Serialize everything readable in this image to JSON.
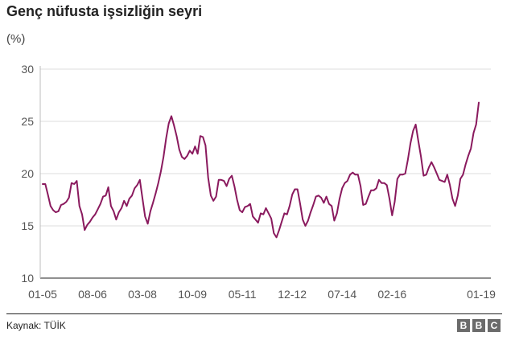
{
  "header": {
    "title": "Genç nüfusta işsizliğin seyri",
    "unit": "(%)"
  },
  "footer": {
    "source": "Kaynak: TÜİK",
    "logo_letters": [
      "B",
      "B",
      "C"
    ]
  },
  "colors": {
    "line": "#8a1a5e",
    "grid": "#dcdcdc",
    "axis": "#222222",
    "logo": "#6b6b6b"
  },
  "chart_data": {
    "type": "line",
    "title": "Genç nüfusta işsizliğin seyri",
    "ylabel": "(%)",
    "xlabel": "",
    "ylim": [
      10,
      30
    ],
    "yticks": [
      10,
      15,
      20,
      25,
      30
    ],
    "grid": true,
    "xtick_labels": [
      {
        "label": "01-05",
        "index": 0
      },
      {
        "label": "08-06",
        "index": 19
      },
      {
        "label": "03-08",
        "index": 38
      },
      {
        "label": "10-09",
        "index": 57
      },
      {
        "label": "05-11",
        "index": 76
      },
      {
        "label": "12-12",
        "index": 95
      },
      {
        "label": "07-14",
        "index": 114
      },
      {
        "label": "02-16",
        "index": 133
      },
      {
        "label": "01-19",
        "index": 168
      }
    ],
    "series": [
      {
        "color": "#8a1a5e",
        "values": [
          19,
          19,
          18,
          16.9,
          16.5,
          16.3,
          16.4,
          17,
          17.1,
          17.3,
          17.7,
          19.1,
          19,
          19.3,
          16.9,
          16.1,
          14.6,
          15.1,
          15.4,
          15.8,
          16.1,
          16.6,
          17.1,
          17.8,
          17.9,
          18.7,
          16.9,
          16.4,
          15.6,
          16.3,
          16.7,
          17.4,
          16.9,
          17.6,
          17.9,
          18.6,
          18.9,
          19.4,
          17.6,
          15.9,
          15.2,
          16.4,
          17.2,
          18.1,
          19.1,
          20.2,
          21.6,
          23.4,
          24.8,
          25.5,
          24.6,
          23.6,
          22.3,
          21.6,
          21.4,
          21.7,
          22.2,
          21.9,
          22.6,
          21.9,
          23.6,
          23.5,
          22.7,
          19.6,
          17.9,
          17.4,
          17.8,
          19.4,
          19.4,
          19.3,
          18.8,
          19.5,
          19.8,
          18.8,
          17.5,
          16.5,
          16.3,
          16.8,
          16.9,
          17.1,
          15.9,
          15.6,
          15.3,
          16.2,
          16.1,
          16.7,
          16.2,
          15.7,
          14.3,
          13.9,
          14.6,
          15.4,
          16.2,
          16.1,
          16.9,
          18,
          18.5,
          18.5,
          17.1,
          15.6,
          15,
          15.5,
          16.3,
          17,
          17.8,
          17.9,
          17.7,
          17.2,
          17.8,
          17.1,
          16.9,
          15.5,
          16.2,
          17.6,
          18.6,
          19.1,
          19.3,
          19.9,
          20.1,
          19.9,
          19.9,
          18.8,
          17,
          17.1,
          17.8,
          18.4,
          18.4,
          18.6,
          19.4,
          19.1,
          19.1,
          18.9,
          17.6,
          16,
          17.3,
          19.5,
          19.9,
          19.9,
          20,
          21.3,
          22.9,
          24.1,
          24.7,
          23.1,
          21.6,
          19.8,
          19.9,
          20.6,
          21.1,
          20.6,
          20,
          19.4,
          19.3,
          19.2,
          19.9,
          18.9,
          17.6,
          16.9,
          17.9,
          19.5,
          19.9,
          20.9,
          21.7,
          22.4,
          23.9,
          24.7,
          26.8
        ]
      }
    ]
  }
}
